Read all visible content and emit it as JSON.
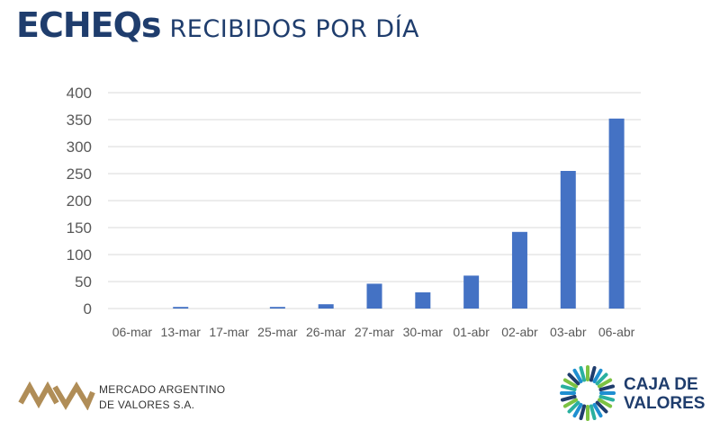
{
  "header": {
    "title_main": "ECHEQs",
    "title_sub": "RECIBIDOS POR DÍA"
  },
  "chart_data": {
    "type": "bar",
    "title": "ECHEQs RECIBIDOS POR DÍA",
    "categories": [
      "06-mar",
      "13-mar",
      "17-mar",
      "25-mar",
      "26-mar",
      "27-mar",
      "30-mar",
      "01-abr",
      "02-abr",
      "03-abr",
      "06-abr"
    ],
    "values": [
      0,
      3,
      0,
      3,
      8,
      46,
      30,
      61,
      142,
      255,
      352
    ],
    "ylim": [
      0,
      400
    ],
    "yticks": [
      0,
      50,
      100,
      150,
      200,
      250,
      300,
      350,
      400
    ],
    "grid": true,
    "bar_color": "#4472c4",
    "grid_color": "#d9d9d9",
    "tick_color": "#595959"
  },
  "footer": {
    "mav_line1": "MERCADO ARGENTINO",
    "mav_line2": "DE VALORES S.A.",
    "cv_line1": "CAJA DE",
    "cv_line2": "VALORES",
    "mav_color": "#b08d57",
    "cv_color": "#1f3d6d"
  }
}
